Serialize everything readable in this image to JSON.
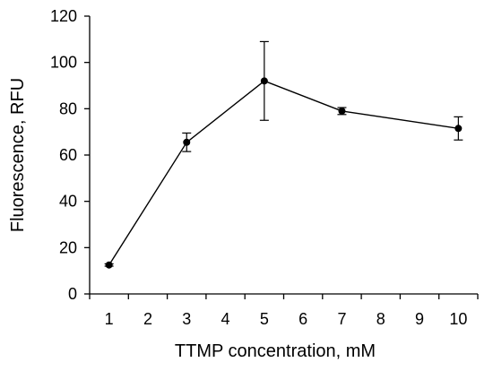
{
  "chart_data": {
    "type": "line",
    "title": "",
    "xlabel": "TTMP concentration, mM",
    "ylabel": "Fluorescence, RFU",
    "x_ticks": [
      "1",
      "2",
      "3",
      "4",
      "5",
      "6",
      "7",
      "8",
      "9",
      "10"
    ],
    "y_ticks": [
      "0",
      "20",
      "40",
      "60",
      "80",
      "100",
      "120"
    ],
    "ylim": [
      0,
      120
    ],
    "grid": false,
    "legend": "none",
    "series": [
      {
        "x": [
          "1",
          "3",
          "5",
          "7",
          "10"
        ],
        "values": [
          12.5,
          65.5,
          92,
          79,
          71.5
        ],
        "error": [
          0.5,
          4,
          17,
          1.5,
          5
        ]
      }
    ],
    "colors": {
      "line": "#000000",
      "marker": "#000000",
      "axis": "#000000"
    }
  }
}
